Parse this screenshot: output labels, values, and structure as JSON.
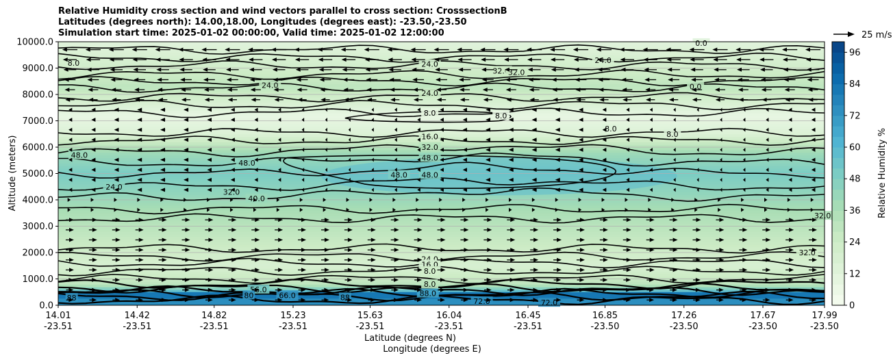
{
  "chart_data": {
    "type": "heatmap",
    "title_lines": [
      "Relative Humidity cross section and wind vectors parallel to cross section: CrosssectionB",
      "Latitudes (degrees north): 14.00,18.00, Longitudes (degrees east): -23.50,-23.50",
      "Simulation start time: 2025-01-02 00:00:00, Valid time: 2025-01-02 12:00:00"
    ],
    "xlabel_lat": "Latitude (degrees N)",
    "xlabel_lon": "Longitude (degrees E)",
    "ylabel": "Altitude (meters)",
    "colorbar_label": "Relative Humidity %",
    "ylim": [
      0,
      10000
    ],
    "yticks": [
      "0.0",
      "1000.0",
      "2000.0",
      "3000.0",
      "4000.0",
      "5000.0",
      "6000.0",
      "7000.0",
      "8000.0",
      "9000.0",
      "10000.0"
    ],
    "xticks_lat": [
      "14.01",
      "14.42",
      "14.82",
      "15.23",
      "15.63",
      "16.04",
      "16.45",
      "16.85",
      "17.26",
      "17.67",
      "17.99"
    ],
    "xticks_lon": [
      "-23.51",
      "-23.51",
      "-23.51",
      "-23.51",
      "-23.51",
      "-23.51",
      "-23.51",
      "-23.50",
      "-23.50",
      "-23.50",
      "-23.50"
    ],
    "xlim_lat": [
      14.01,
      17.99
    ],
    "colorbar_ticks": [
      "0",
      "12",
      "24",
      "36",
      "48",
      "60",
      "72",
      "84",
      "96"
    ],
    "colorbar_range": [
      0,
      100
    ],
    "colorbar_levels": 25,
    "colormap": [
      "#f7fcf0",
      "#e0f3db",
      "#ccebc5",
      "#a8ddb5",
      "#7bccc4",
      "#4eb3d3",
      "#2b8cbe",
      "#0868ac",
      "#084081"
    ],
    "quiver_key_label": "25 m/s",
    "grid": "horizontal",
    "rh_profile": [
      {
        "alt": 0,
        "rh": 75
      },
      {
        "alt": 400,
        "rh": 72
      },
      {
        "alt": 800,
        "rh": 30
      },
      {
        "alt": 1500,
        "rh": 18
      },
      {
        "alt": 2500,
        "rh": 27
      },
      {
        "alt": 3500,
        "rh": 36
      },
      {
        "alt": 4300,
        "rh": 44
      },
      {
        "alt": 5000,
        "rh": 50
      },
      {
        "alt": 5800,
        "rh": 40
      },
      {
        "alt": 6500,
        "rh": 15
      },
      {
        "alt": 7200,
        "rh": 8
      },
      {
        "alt": 8300,
        "rh": 30
      },
      {
        "alt": 9000,
        "rh": 22
      },
      {
        "alt": 10000,
        "rh": 12
      }
    ],
    "contour_labels": [
      {
        "text": "8.0",
        "lat": 14.09,
        "alt": 9200
      },
      {
        "text": "24.0",
        "lat": 15.94,
        "alt": 9150
      },
      {
        "text": "24.0",
        "lat": 16.84,
        "alt": 9300
      },
      {
        "text": "32.0",
        "lat": 16.31,
        "alt": 8900
      },
      {
        "text": "32.0",
        "lat": 16.39,
        "alt": 8850
      },
      {
        "text": "24.0",
        "lat": 15.11,
        "alt": 8350
      },
      {
        "text": "24.0",
        "lat": 15.94,
        "alt": 8050
      },
      {
        "text": "0.0",
        "lat": 17.35,
        "alt": 9950
      },
      {
        "text": "0.0",
        "lat": 17.32,
        "alt": 8300
      },
      {
        "text": "8.0",
        "lat": 15.94,
        "alt": 7300
      },
      {
        "text": "8.0",
        "lat": 16.31,
        "alt": 7200
      },
      {
        "text": "8.0",
        "lat": 16.88,
        "alt": 6700
      },
      {
        "text": "8.0",
        "lat": 17.2,
        "alt": 6500
      },
      {
        "text": "16.0",
        "lat": 15.94,
        "alt": 6400
      },
      {
        "text": "32.0",
        "lat": 15.94,
        "alt": 6000
      },
      {
        "text": "48.0",
        "lat": 14.12,
        "alt": 5700
      },
      {
        "text": "48.0",
        "lat": 14.99,
        "alt": 5400
      },
      {
        "text": "48.0",
        "lat": 15.94,
        "alt": 5600
      },
      {
        "text": "48.0",
        "lat": 15.78,
        "alt": 4950
      },
      {
        "text": "48.0",
        "lat": 15.94,
        "alt": 4950
      },
      {
        "text": "24.0",
        "lat": 14.3,
        "alt": 4500
      },
      {
        "text": "32.0",
        "lat": 14.91,
        "alt": 4300
      },
      {
        "text": "40.0",
        "lat": 15.04,
        "alt": 4050
      },
      {
        "text": "32.0",
        "lat": 17.98,
        "alt": 3400
      },
      {
        "text": "32.0",
        "lat": 17.9,
        "alt": 2000
      },
      {
        "text": "24.0",
        "lat": 15.94,
        "alt": 1750
      },
      {
        "text": "16.0",
        "lat": 15.94,
        "alt": 1550
      },
      {
        "text": "8.0",
        "lat": 15.94,
        "alt": 1300
      },
      {
        "text": "8.0",
        "lat": 15.94,
        "alt": 800
      },
      {
        "text": "56.0",
        "lat": 15.05,
        "alt": 600
      },
      {
        "text": "88",
        "lat": 14.08,
        "alt": 280
      },
      {
        "text": "80",
        "lat": 15.0,
        "alt": 380
      },
      {
        "text": "66.0",
        "lat": 15.2,
        "alt": 380
      },
      {
        "text": "88",
        "lat": 15.5,
        "alt": 300
      },
      {
        "text": "88.0",
        "lat": 15.93,
        "alt": 450
      },
      {
        "text": "72.0",
        "lat": 16.21,
        "alt": 150
      },
      {
        "text": "72.0",
        "lat": 16.56,
        "alt": 100
      }
    ]
  }
}
